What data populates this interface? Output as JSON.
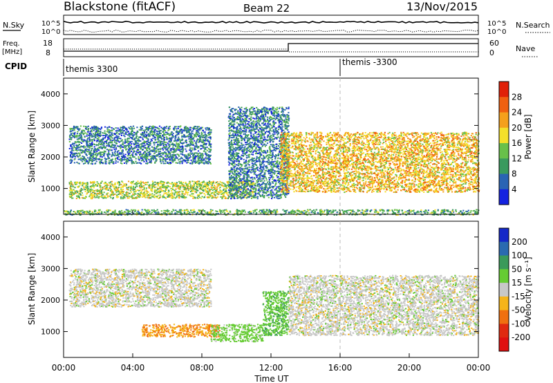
{
  "header": {
    "station": "Blackstone (fitACF)",
    "beam": "Beam 22",
    "date": "13/Nov/2015"
  },
  "scan_panel": {
    "nsky_label": "N.Sky",
    "nsearch_label": "N.Search",
    "left_ticks": [
      "10^5",
      "10^0"
    ],
    "right_ticks": [
      "10^5",
      "10^0"
    ]
  },
  "freq_panel": {
    "freq_label": "Freq.",
    "freq_unit": "[MHz]",
    "nave_label": "Nave",
    "left_ticks": [
      "18",
      "8"
    ],
    "right_ticks": [
      "60",
      "0"
    ],
    "cpid_label": "CPID",
    "cpid_names": [
      "themis 3300",
      "themis -3300"
    ],
    "cpid_switch_hour": 16.0,
    "freq_step_hour": 13.0
  },
  "axes": {
    "ylabel": "Slant Range [km]",
    "xlabel": "Time UT",
    "x_ticks": [
      "00:00",
      "04:00",
      "08:00",
      "12:00",
      "16:00",
      "20:00",
      "00:00"
    ],
    "y_ticks": [
      "1000",
      "2000",
      "3000",
      "4000"
    ]
  },
  "power_scale": {
    "label": "Power [dB]",
    "ticks": [
      "4",
      "8",
      "12",
      "16",
      "20",
      "24",
      "28"
    ],
    "colors": [
      "#1422e0",
      "#2a64b4",
      "#3a9a5e",
      "#68c04a",
      "#f4e02a",
      "#f5a01c",
      "#f06010",
      "#e02008"
    ]
  },
  "velocity_scale": {
    "label": "Velocity [m s⁻¹]",
    "ticks": [
      "200",
      "100",
      "50",
      "15",
      "-15",
      "-50",
      "-100",
      "-200"
    ],
    "colors": [
      "#1428c8",
      "#2a6ab0",
      "#3a9a5a",
      "#66cc33",
      "#c8c8c8",
      "#f5b41a",
      "#f07010",
      "#e02a10",
      "#e01010"
    ]
  },
  "chart_data": {
    "type": "heatmap",
    "x_range_hours": [
      0,
      24
    ],
    "y_range_km": [
      180,
      4500
    ],
    "panels": [
      {
        "name": "Power",
        "unit": "dB",
        "bands": [
          {
            "x": [
              0.3,
              11.0
            ],
            "y": [
              700,
              1250
            ],
            "value": 16
          },
          {
            "x": [
              0.3,
              8.5
            ],
            "y": [
              1800,
              3000
            ],
            "value": 8
          },
          {
            "x": [
              9.5,
              13.0
            ],
            "y": [
              700,
              3600
            ],
            "value": 8
          },
          {
            "x": [
              12.5,
              24.0
            ],
            "y": [
              900,
              2800
            ],
            "value": 20
          },
          {
            "x": [
              0.0,
              24.0
            ],
            "y": [
              180,
              350
            ],
            "value": 12
          }
        ]
      },
      {
        "name": "Velocity",
        "unit": "m s^-1",
        "bands": [
          {
            "x": [
              0.3,
              8.5
            ],
            "y": [
              1800,
              3000
            ],
            "value": 0
          },
          {
            "x": [
              4.5,
              9.0
            ],
            "y": [
              850,
              1250
            ],
            "value": -50
          },
          {
            "x": [
              8.5,
              11.5
            ],
            "y": [
              700,
              1250
            ],
            "value": 30
          },
          {
            "x": [
              11.5,
              13.0
            ],
            "y": [
              900,
              2300
            ],
            "value": 40
          },
          {
            "x": [
              13.0,
              24.0
            ],
            "y": [
              900,
              2800
            ],
            "value": 0
          }
        ]
      }
    ]
  }
}
